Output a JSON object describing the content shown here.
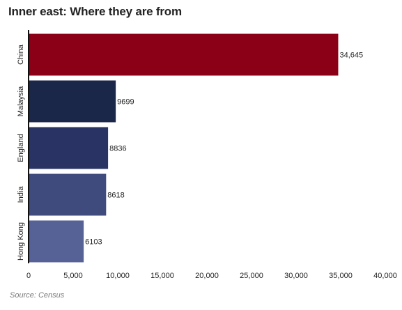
{
  "title": "Inner east: Where they are from",
  "source": "Source: Census",
  "chart_data": {
    "type": "bar",
    "orientation": "horizontal",
    "title": "Inner east: Where they are from",
    "xlabel": "",
    "ylabel": "",
    "categories": [
      "China",
      "Malaysia",
      "England",
      "India",
      "Hong Kong"
    ],
    "values": [
      34645,
      9699,
      8836,
      8618,
      6103
    ],
    "value_labels": [
      "34,645",
      "9699",
      "8836",
      "8618",
      "6103"
    ],
    "colors": [
      "#8b0016",
      "#1b2748",
      "#2a3464",
      "#3f4b7c",
      "#566196"
    ],
    "xlim": [
      0,
      40000
    ],
    "x_ticks": [
      0,
      5000,
      10000,
      15000,
      20000,
      25000,
      30000,
      35000,
      40000
    ],
    "x_tick_labels": [
      "0",
      "5,000",
      "10,000",
      "15,000",
      "20,000",
      "25,000",
      "30,000",
      "35,000",
      "40,000"
    ],
    "grid": false,
    "legend": "none"
  }
}
